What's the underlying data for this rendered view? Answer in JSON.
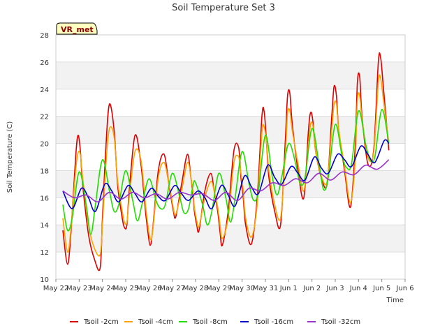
{
  "chart_data": {
    "type": "line",
    "title": "Soil Temperature Set 3",
    "xlabel": "Time",
    "ylabel": "Soil Temperature (C)",
    "badge": "VR_met",
    "xlim": [
      0,
      15
    ],
    "ylim": [
      10,
      28
    ],
    "x_ticks": [
      {
        "x": 0,
        "label": "May 22"
      },
      {
        "x": 1,
        "label": "May 23"
      },
      {
        "x": 2,
        "label": "May 24"
      },
      {
        "x": 3,
        "label": "May 25"
      },
      {
        "x": 4,
        "label": "May 26"
      },
      {
        "x": 5,
        "label": "May 27"
      },
      {
        "x": 6,
        "label": "May 28"
      },
      {
        "x": 7,
        "label": "May 29"
      },
      {
        "x": 8,
        "label": "May 30"
      },
      {
        "x": 9,
        "label": "May 31"
      },
      {
        "x": 10,
        "label": "Jun 1"
      },
      {
        "x": 11,
        "label": "Jun 2"
      },
      {
        "x": 12,
        "label": "Jun 3"
      },
      {
        "x": 13,
        "label": "Jun 4"
      },
      {
        "x": 14,
        "label": "Jun 5"
      },
      {
        "x": 15,
        "label": "Jun 6"
      }
    ],
    "y_ticks": [
      10,
      12,
      14,
      16,
      18,
      20,
      22,
      24,
      26,
      28
    ],
    "grid": true,
    "legend_position": "bottom",
    "series": [
      {
        "name": "Tsoil -2cm",
        "color": "#dd0000",
        "x": [
          0.3,
          0.5,
          0.65,
          0.85,
          0.95,
          1.05,
          1.15,
          1.4,
          1.65,
          1.9,
          2.0,
          2.15,
          2.3,
          2.5,
          2.65,
          2.85,
          2.95,
          3.05,
          3.15,
          3.4,
          3.65,
          3.85,
          3.95,
          4.05,
          4.15,
          4.4,
          4.65,
          4.85,
          4.95,
          5.05,
          5.15,
          5.4,
          5.65,
          5.8,
          5.9,
          5.95,
          6.05,
          6.15,
          6.4,
          6.65,
          6.8,
          6.95,
          7.05,
          7.15,
          7.4,
          7.65,
          7.85,
          7.95,
          8.05,
          8.15,
          8.4,
          8.65,
          8.85,
          8.95,
          9.05,
          9.15,
          9.4,
          9.65,
          9.85,
          9.95,
          10.05,
          10.15,
          10.4,
          10.65,
          10.85,
          10.95,
          11.05,
          11.15,
          11.4,
          11.65,
          11.85,
          11.95,
          12.05,
          12.15,
          12.4,
          12.65,
          12.85,
          12.95,
          13.05,
          13.15,
          13.4,
          13.65,
          13.85,
          13.95,
          14.05,
          14.3
        ],
        "y": [
          13.6,
          11.1,
          13.5,
          19.0,
          20.6,
          19.5,
          17.0,
          13.3,
          11.5,
          10.8,
          14.5,
          19.8,
          22.9,
          21.0,
          17.0,
          14.5,
          13.8,
          14.0,
          16.5,
          20.6,
          18.5,
          15.0,
          13.5,
          12.5,
          13.5,
          18.0,
          19.2,
          17.0,
          16.0,
          15.0,
          14.6,
          17.0,
          19.2,
          17.5,
          16.0,
          15.0,
          14.0,
          13.6,
          16.5,
          17.8,
          16.5,
          15.0,
          13.5,
          12.5,
          15.0,
          19.5,
          19.7,
          17.5,
          16.0,
          14.0,
          12.6,
          16.0,
          22.0,
          22.3,
          20.0,
          17.5,
          15.0,
          14.0,
          20.0,
          23.5,
          23.7,
          21.5,
          18.0,
          16.0,
          21.0,
          22.3,
          21.5,
          19.5,
          17.5,
          17.0,
          22.0,
          24.2,
          23.5,
          21.0,
          18.0,
          15.3,
          19.5,
          24.5,
          24.9,
          22.0,
          18.5,
          19.5,
          26.0,
          26.3,
          24.5,
          19.5
        ]
      },
      {
        "name": "Tsoil -4cm",
        "color": "#ffa500",
        "x": [
          0.3,
          0.5,
          0.65,
          0.85,
          0.95,
          1.05,
          1.15,
          1.4,
          1.65,
          1.9,
          2.0,
          2.15,
          2.3,
          2.5,
          2.65,
          2.85,
          2.95,
          3.05,
          3.15,
          3.4,
          3.65,
          3.85,
          3.95,
          4.05,
          4.15,
          4.4,
          4.65,
          4.85,
          4.95,
          5.05,
          5.15,
          5.4,
          5.65,
          5.8,
          5.9,
          5.95,
          6.05,
          6.15,
          6.4,
          6.65,
          6.8,
          6.95,
          7.05,
          7.15,
          7.4,
          7.65,
          7.85,
          7.95,
          8.05,
          8.15,
          8.4,
          8.65,
          8.85,
          8.95,
          9.05,
          9.15,
          9.4,
          9.65,
          9.85,
          9.95,
          10.05,
          10.15,
          10.4,
          10.65,
          10.85,
          10.95,
          11.05,
          11.15,
          11.4,
          11.65,
          11.85,
          11.95,
          12.05,
          12.15,
          12.4,
          12.65,
          12.85,
          12.95,
          13.05,
          13.15,
          13.4,
          13.65,
          13.85,
          13.95,
          14.05,
          14.3
        ],
        "y": [
          14.5,
          12.0,
          13.8,
          18.0,
          19.3,
          19.2,
          17.5,
          14.0,
          12.3,
          11.8,
          14.0,
          18.5,
          21.1,
          20.5,
          17.3,
          15.0,
          14.2,
          14.2,
          16.0,
          19.4,
          18.8,
          15.5,
          14.0,
          13.0,
          13.4,
          17.5,
          18.6,
          17.0,
          16.2,
          15.2,
          14.8,
          16.5,
          18.6,
          17.5,
          16.3,
          15.3,
          14.3,
          13.9,
          16.0,
          17.2,
          16.5,
          15.3,
          14.0,
          13.0,
          14.5,
          18.6,
          19.0,
          17.8,
          16.5,
          14.5,
          13.1,
          15.5,
          20.8,
          21.2,
          20.0,
          18.0,
          15.5,
          14.5,
          19.0,
          22.2,
          22.4,
          21.0,
          18.5,
          16.5,
          20.0,
          21.5,
          21.2,
          19.5,
          17.6,
          17.2,
          21.0,
          22.9,
          22.9,
          21.0,
          18.3,
          15.6,
          18.5,
          23.2,
          23.5,
          21.8,
          19.0,
          19.3,
          24.5,
          24.8,
          23.5,
          20.0
        ]
      },
      {
        "name": "Tsoil -8cm",
        "color": "#22dd00",
        "x": [
          0.3,
          0.5,
          0.7,
          1.0,
          1.3,
          1.5,
          1.7,
          2.0,
          2.3,
          2.5,
          2.7,
          3.0,
          3.3,
          3.5,
          3.7,
          4.0,
          4.3,
          4.5,
          4.7,
          5.0,
          5.3,
          5.5,
          5.7,
          5.9,
          6.0,
          6.3,
          6.5,
          6.7,
          7.0,
          7.3,
          7.5,
          7.7,
          8.0,
          8.3,
          8.5,
          8.7,
          9.0,
          9.3,
          9.5,
          9.7,
          10.0,
          10.3,
          10.5,
          10.7,
          11.0,
          11.3,
          11.5,
          11.7,
          12.0,
          12.3,
          12.5,
          12.7,
          13.0,
          13.3,
          13.5,
          13.7,
          14.0,
          14.3
        ],
        "y": [
          15.5,
          13.6,
          14.5,
          17.9,
          15.5,
          13.3,
          15.5,
          18.8,
          16.5,
          15.0,
          15.5,
          18.0,
          15.8,
          14.3,
          15.5,
          17.4,
          15.8,
          15.2,
          15.5,
          17.8,
          16.2,
          14.9,
          15.2,
          17.0,
          17.1,
          15.5,
          14.0,
          15.0,
          17.8,
          16.0,
          14.2,
          16.0,
          19.4,
          17.0,
          15.8,
          16.5,
          20.6,
          17.5,
          16.2,
          17.5,
          20.0,
          18.5,
          17.0,
          17.5,
          21.1,
          18.5,
          16.6,
          17.5,
          21.4,
          19.0,
          18.2,
          18.5,
          22.4,
          20.0,
          18.8,
          19.0,
          22.5,
          20.0
        ]
      },
      {
        "name": "Tsoil -16cm",
        "color": "#0000cc",
        "x": [
          0.3,
          0.7,
          1.1,
          1.4,
          1.7,
          2.1,
          2.4,
          2.7,
          3.1,
          3.4,
          3.7,
          4.1,
          4.4,
          4.7,
          5.1,
          5.4,
          5.7,
          6.1,
          6.4,
          6.7,
          7.1,
          7.4,
          7.7,
          8.1,
          8.4,
          8.7,
          9.1,
          9.4,
          9.7,
          10.1,
          10.4,
          10.7,
          11.1,
          11.4,
          11.7,
          12.1,
          12.4,
          12.7,
          13.1,
          13.4,
          13.7,
          14.1,
          14.3
        ],
        "y": [
          16.5,
          15.2,
          16.7,
          16.0,
          15.0,
          17.0,
          16.5,
          15.7,
          16.9,
          16.3,
          15.7,
          16.7,
          16.1,
          15.8,
          16.9,
          16.3,
          15.8,
          16.5,
          16.0,
          15.2,
          16.9,
          16.2,
          15.4,
          17.6,
          16.8,
          16.3,
          18.4,
          17.5,
          17.0,
          18.3,
          17.8,
          17.3,
          19.0,
          18.2,
          17.8,
          19.2,
          18.8,
          18.3,
          19.8,
          19.2,
          18.6,
          20.2,
          20.0
        ]
      },
      {
        "name": "Tsoil -32cm",
        "color": "#9933cc",
        "x": [
          0.3,
          0.8,
          1.3,
          1.8,
          2.3,
          2.8,
          3.3,
          3.8,
          4.3,
          4.8,
          5.3,
          5.8,
          6.3,
          6.8,
          7.3,
          7.8,
          8.3,
          8.8,
          9.3,
          9.8,
          10.3,
          10.8,
          11.3,
          11.8,
          12.3,
          12.8,
          13.3,
          13.8,
          14.3
        ],
        "y": [
          16.5,
          16.0,
          16.2,
          15.7,
          16.4,
          15.9,
          16.4,
          16.0,
          16.3,
          15.9,
          16.4,
          16.2,
          16.3,
          15.8,
          16.4,
          15.8,
          16.7,
          16.5,
          17.1,
          16.9,
          17.4,
          17.1,
          17.8,
          17.3,
          17.9,
          17.7,
          18.4,
          18.1,
          18.8
        ]
      }
    ]
  }
}
